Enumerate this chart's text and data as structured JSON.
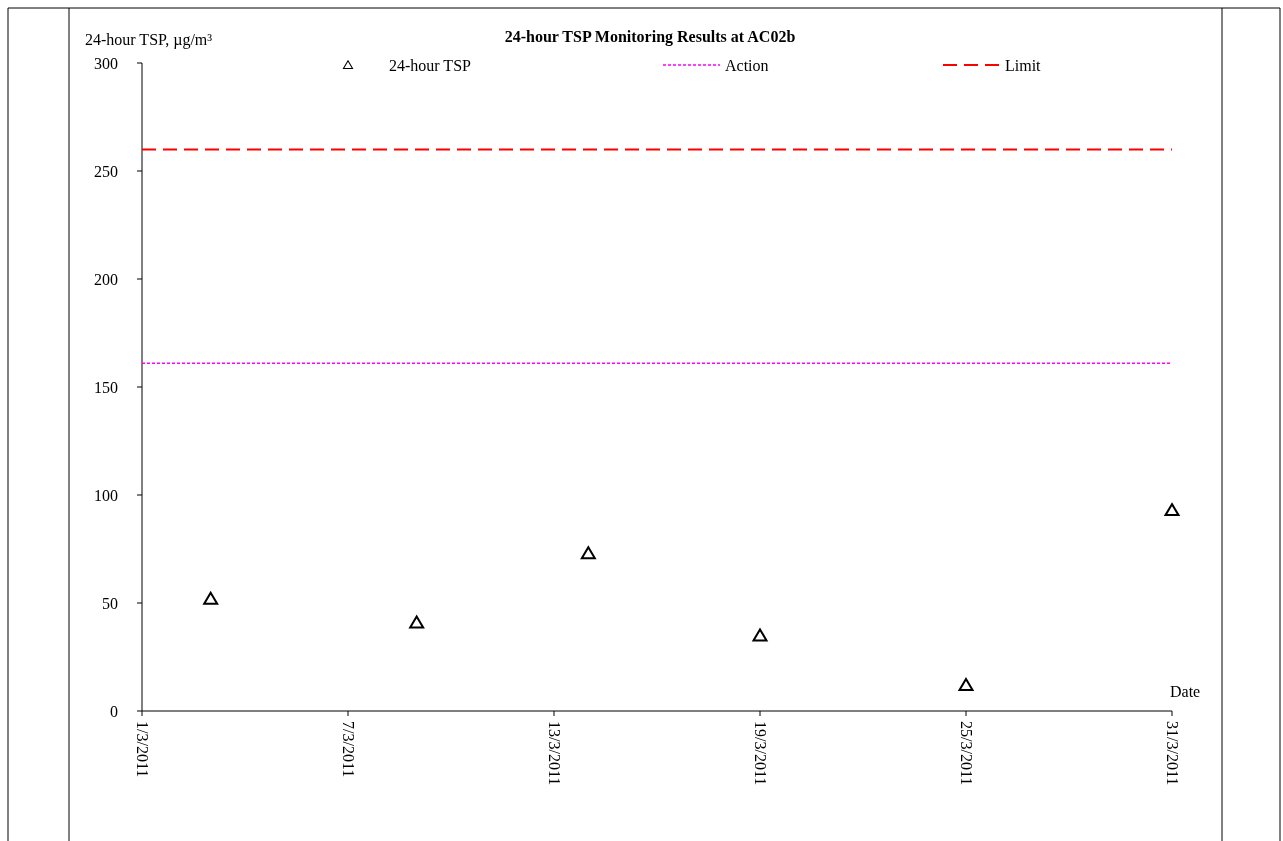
{
  "chart_data": {
    "type": "scatter",
    "title": "24-hour TSP Monitoring Results at AC02b",
    "xlabel": "Date",
    "ylabel": "24-hour TSP, µg/m³",
    "x": [
      "2011-03-03",
      "2011-03-09",
      "2011-03-14",
      "2011-03-19",
      "2011-03-25",
      "2011-03-31"
    ],
    "series": [
      {
        "name": "24-hour TSP",
        "color": "#000000",
        "values": [
          52,
          41,
          73,
          35,
          12,
          93
        ]
      }
    ],
    "marker": "triangle",
    "ref_lines": [
      {
        "axis": "y",
        "value": 161,
        "label": "Action",
        "color": "#ff00ff",
        "line_style": "dotted"
      },
      {
        "axis": "y",
        "value": 260,
        "label": "Limit",
        "color": "#ff0000",
        "line_style": "dashed"
      }
    ],
    "xlim": [
      "2011-03-01",
      "2011-03-31"
    ],
    "xticks": [
      {
        "value": "2011-03-01",
        "label": "1/3/2011"
      },
      {
        "value": "2011-03-07",
        "label": "7/3/2011"
      },
      {
        "value": "2011-03-13",
        "label": "13/3/2011"
      },
      {
        "value": "2011-03-19",
        "label": "19/3/2011"
      },
      {
        "value": "2011-03-25",
        "label": "25/3/2011"
      },
      {
        "value": "2011-03-31",
        "label": "31/3/2011"
      }
    ],
    "ylim": [
      0,
      300
    ],
    "yticks": [
      0,
      50,
      100,
      150,
      200,
      250,
      300
    ],
    "grid": false,
    "legend": "top"
  }
}
